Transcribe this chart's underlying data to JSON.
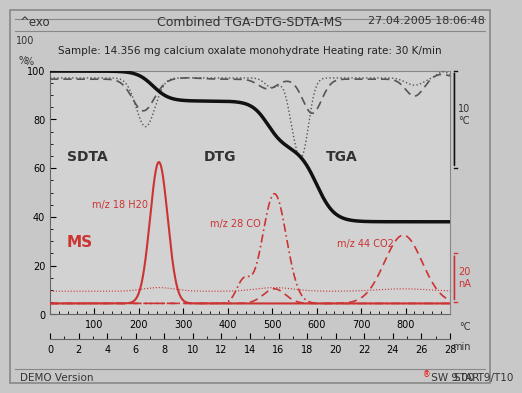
{
  "title": "Combined TGA-DTG-SDTA-MS",
  "date": "27.04.2005 18:06:48",
  "exo_label": "^exo",
  "sample_text": "Sample: 14.356 mg calcium oxalate monohydrate",
  "heating_text": "Heating rate: 30 K/min",
  "demo_text": "DEMO Version",
  "star_text": "STAR® SW 9.00 T9/T10",
  "bg_color": "#c8c8c8",
  "plot_bg_color": "#d2d2d2",
  "label_sdta": "SDTA",
  "label_dtg": "DTG",
  "label_tga": "TGA",
  "label_ms": "MS",
  "label_h2o": "m/z 18 H20",
  "label_co": "m/z 28 CO",
  "label_co2": "m/z 44 CO2",
  "black_line": "#111111",
  "gray_line": "#555555",
  "red_line": "#cc3333",
  "bracket_color_black": "#111111",
  "bracket_color_red": "#cc3333"
}
